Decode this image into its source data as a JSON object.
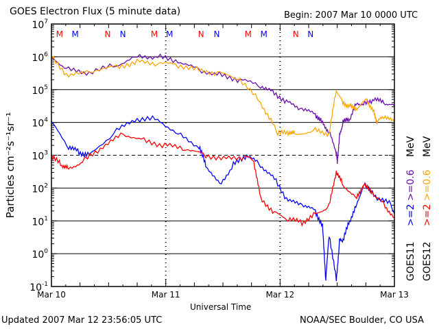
{
  "chart_data": {
    "type": "line",
    "title": "GOES Electron Flux (5 minute data)",
    "begin_label": "Begin: 2007 Mar 10 0000 UTC",
    "xlabel": "Universal Time",
    "ylabel": "Particles cm⁻²s⁻¹sr⁻¹",
    "x_unit": "hours since 2007 Mar 10 0000 UTC",
    "xlim": [
      0,
      72
    ],
    "x_ticks": [
      {
        "hr": 0,
        "label": "Mar 10"
      },
      {
        "hr": 24,
        "label": "Mar 11"
      },
      {
        "hr": 48,
        "label": "Mar 12"
      },
      {
        "hr": 72,
        "label": "Mar 13"
      }
    ],
    "yscale": "log",
    "ylim_log10": [
      -1,
      7
    ],
    "y_ticks": [
      {
        "base": "10",
        "exp": "7"
      },
      {
        "base": "10",
        "exp": "6"
      },
      {
        "base": "10",
        "exp": "5"
      },
      {
        "base": "10",
        "exp": "4"
      },
      {
        "base": "10",
        "exp": "3"
      },
      {
        "base": "10",
        "exp": "2"
      },
      {
        "base": "10",
        "exp": "1"
      },
      {
        "base": "10",
        "exp": "0"
      },
      {
        "base": "10",
        "exp": "-1"
      }
    ],
    "dashed_threshold_log10": 3,
    "grid": true,
    "markers": [
      {
        "label": "M",
        "color": "#ff0000",
        "hr": 1.7
      },
      {
        "label": "M",
        "color": "#0000ff",
        "hr": 5.0
      },
      {
        "label": "N",
        "color": "#ff0000",
        "hr": 11.8
      },
      {
        "label": "N",
        "color": "#0000ff",
        "hr": 15.0
      },
      {
        "label": "M",
        "color": "#ff0000",
        "hr": 21.6
      },
      {
        "label": "M",
        "color": "#0000ff",
        "hr": 24.8
      },
      {
        "label": "N",
        "color": "#ff0000",
        "hr": 31.4
      },
      {
        "label": "N",
        "color": "#0000ff",
        "hr": 34.7
      },
      {
        "label": "M",
        "color": "#ff0000",
        "hr": 41.3
      },
      {
        "label": "M",
        "color": "#0000ff",
        "hr": 44.6
      },
      {
        "label": "N",
        "color": "#ff0000",
        "hr": 51.3
      },
      {
        "label": "N",
        "color": "#0000ff",
        "hr": 54.4
      }
    ],
    "legend": [
      {
        "sat": "GOES11",
        "text": ">=2",
        "color": "#0000ff"
      },
      {
        "text": ">=0.6",
        "color": "#6a0dad"
      },
      {
        "text": "MeV",
        "color": "#000000"
      },
      {
        "sat": "GOES12",
        "text": ">=2",
        "color": "#ff0000"
      },
      {
        "text": ">=0.6",
        "color": "#ffa500"
      },
      {
        "text": "MeV",
        "color": "#000000"
      }
    ],
    "series": [
      {
        "name": "GOES11 >=0.6 MeV",
        "color": "#6a0dad",
        "x": [
          0,
          3.6,
          7.9,
          13.7,
          18,
          22.3,
          26.6,
          31,
          35.3,
          39.6,
          43.9,
          46.8,
          49.7,
          52.6,
          55.4,
          56.9,
          58.3,
          59.8,
          60,
          60.5,
          61.2,
          62.6,
          64.1,
          65.5,
          67.7,
          69.8,
          72
        ],
        "log10": [
          6.0,
          5.6,
          5.5,
          5.75,
          6.02,
          6.0,
          5.85,
          5.6,
          5.45,
          5.3,
          5.12,
          4.9,
          4.6,
          4.4,
          4.25,
          4.0,
          3.7,
          3.1,
          2.8,
          3.6,
          4.0,
          4.1,
          4.6,
          4.55,
          4.7,
          4.6,
          4.5
        ]
      },
      {
        "name": "GOES12 >=0.6 MeV",
        "color": "#ffa500",
        "x": [
          0,
          3.6,
          7.9,
          13.7,
          18,
          22.3,
          26.6,
          31,
          35.3,
          39.6,
          43.9,
          46.8,
          47.5,
          49.7,
          51.1,
          55.4,
          58.3,
          59.8,
          61.2,
          62.6,
          64.1,
          66.2,
          67.7,
          68.4,
          69.8,
          72
        ],
        "log10": [
          6.0,
          5.4,
          5.55,
          5.7,
          5.85,
          5.8,
          5.75,
          5.6,
          5.5,
          5.3,
          4.6,
          3.9,
          3.65,
          3.7,
          3.65,
          3.75,
          3.65,
          5.0,
          4.6,
          4.5,
          4.4,
          4.7,
          4.3,
          4.0,
          4.2,
          4.0
        ]
      },
      {
        "name": "GOES11 >=2 MeV",
        "color": "#0000ff",
        "x": [
          0,
          3.6,
          5.8,
          7.9,
          13.7,
          18,
          22.3,
          26.6,
          31,
          32.4,
          35.3,
          38.2,
          41,
          43.9,
          46.8,
          49.7,
          52.6,
          55.4,
          56.9,
          57.6,
          58.3,
          59.8,
          60.5,
          61.2,
          62.6,
          64.1,
          65.5,
          68.4,
          71.3,
          72
        ],
        "log10": [
          4.0,
          3.25,
          3.1,
          3.0,
          3.75,
          4.1,
          4.1,
          3.65,
          3.25,
          2.7,
          2.1,
          2.7,
          3.0,
          2.7,
          2.3,
          1.6,
          1.5,
          1.3,
          0.85,
          -0.8,
          0.6,
          -0.8,
          0.4,
          0.4,
          1.0,
          1.5,
          2.1,
          1.7,
          1.5,
          1.2
        ]
      },
      {
        "name": "GOES12 >=2 MeV",
        "color": "#ff0000",
        "x": [
          0,
          2.2,
          3.6,
          6.5,
          10.8,
          15.1,
          19.4,
          23.8,
          28.1,
          32.4,
          36.7,
          41,
          42.5,
          43.9,
          46.8,
          49.7,
          52.6,
          55.4,
          58.3,
          59.8,
          61.2,
          64.1,
          65.5,
          67.7,
          69.8,
          72
        ],
        "log10": [
          2.95,
          2.7,
          2.6,
          2.8,
          3.25,
          3.65,
          3.45,
          3.3,
          3.2,
          3.0,
          2.9,
          2.95,
          2.8,
          1.7,
          1.25,
          1.05,
          0.95,
          1.2,
          1.45,
          2.5,
          2.1,
          1.7,
          2.1,
          1.8,
          1.5,
          1.1
        ]
      }
    ]
  },
  "footer": {
    "updated": "Updated 2007 Mar 12 23:56:05 UTC",
    "source": "NOAA/SEC Boulder, CO USA"
  }
}
